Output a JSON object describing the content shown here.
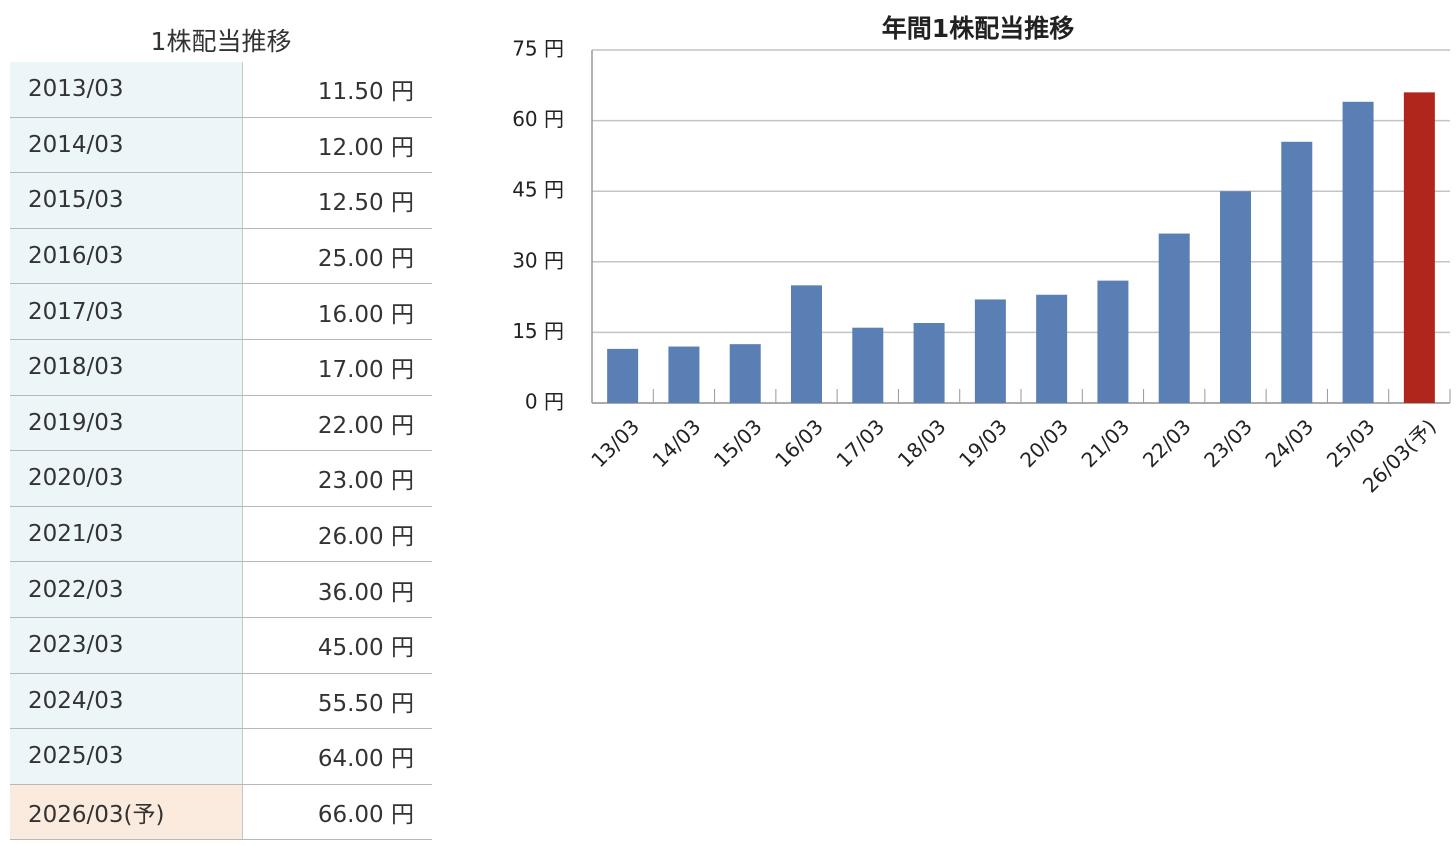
{
  "table": {
    "title": "1株配当推移",
    "rows": [
      [
        "2013/03",
        "11.50 円"
      ],
      [
        "2014/03",
        "12.00 円"
      ],
      [
        "2015/03",
        "12.50 円"
      ],
      [
        "2016/03",
        "25.00 円"
      ],
      [
        "2017/03",
        "16.00 円"
      ],
      [
        "2018/03",
        "17.00 円"
      ],
      [
        "2019/03",
        "22.00 円"
      ],
      [
        "2020/03",
        "23.00 円"
      ],
      [
        "2021/03",
        "26.00 円"
      ],
      [
        "2022/03",
        "36.00 円"
      ],
      [
        "2023/03",
        "45.00 円"
      ],
      [
        "2024/03",
        "55.50 円"
      ],
      [
        "2025/03",
        "64.00 円"
      ],
      [
        "2026/03(予)",
        "66.00 円"
      ]
    ]
  },
  "chart_data": {
    "type": "bar",
    "title": "年間1株配当推移",
    "categories": [
      "13/03",
      "14/03",
      "15/03",
      "16/03",
      "17/03",
      "18/03",
      "19/03",
      "20/03",
      "21/03",
      "22/03",
      "23/03",
      "24/03",
      "25/03",
      "26/03(予)"
    ],
    "values": [
      11.5,
      12,
      12.5,
      25,
      16,
      17,
      22,
      23,
      26,
      36,
      45,
      55.5,
      64,
      66
    ],
    "colors": [
      "#5a7fb5",
      "#5a7fb5",
      "#5a7fb5",
      "#5a7fb5",
      "#5a7fb5",
      "#5a7fb5",
      "#5a7fb5",
      "#5a7fb5",
      "#5a7fb5",
      "#5a7fb5",
      "#5a7fb5",
      "#5a7fb5",
      "#5a7fb5",
      "#b0261c"
    ],
    "ylim": [
      0,
      75
    ],
    "yticks": [
      {
        "value": 0,
        "label": "0 円"
      },
      {
        "value": 15,
        "label": "15 円"
      },
      {
        "value": 30,
        "label": "30 円"
      },
      {
        "value": 45,
        "label": "45 円"
      },
      {
        "value": 60,
        "label": "60 円"
      },
      {
        "value": 75,
        "label": "75 円"
      }
    ],
    "grid": true
  }
}
